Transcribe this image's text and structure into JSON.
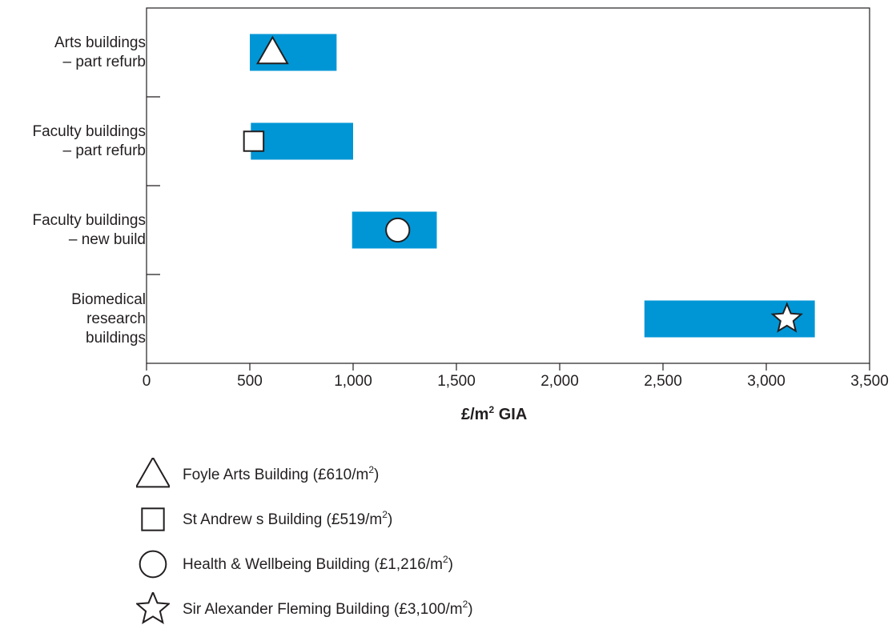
{
  "chart_data": {
    "type": "bar",
    "subtype": "floating-range-bar",
    "orientation": "horizontal",
    "categories": [
      [
        "Arts buildings",
        "– part refurb"
      ],
      [
        "Faculty buildings",
        "– part refurb"
      ],
      [
        "Faculty buildings",
        "– new build"
      ],
      [
        "Biomedical",
        "research",
        "buildings"
      ]
    ],
    "ranges": [
      {
        "low": 500,
        "high": 920
      },
      {
        "low": 505,
        "high": 1000
      },
      {
        "low": 995,
        "high": 1405
      },
      {
        "low": 2410,
        "high": 3235
      }
    ],
    "markers": [
      {
        "category_index": 0,
        "value": 610,
        "shape": "triangle"
      },
      {
        "category_index": 1,
        "value": 519,
        "shape": "square"
      },
      {
        "category_index": 2,
        "value": 1216,
        "shape": "circle"
      },
      {
        "category_index": 3,
        "value": 3100,
        "shape": "star"
      }
    ],
    "x_ticks": [
      0,
      500,
      1000,
      1500,
      2000,
      2500,
      3000,
      3500
    ],
    "x_tick_labels": [
      "0",
      "500",
      "1,000",
      "1,500",
      "2,000",
      "2,500",
      "3,000",
      "3,500"
    ],
    "xlim": [
      0,
      3500
    ],
    "xlabel_main": "£/m",
    "xlabel_sup": "2",
    "xlabel_tail": " GIA",
    "grid": false,
    "bar_color": "#0096d6",
    "legend_position": "bottom",
    "legend": [
      {
        "shape": "triangle",
        "text": "Foyle Arts Building (£610/m",
        "sup": "2",
        "close": ")"
      },
      {
        "shape": "square",
        "text": "St Andrew s Building (£519/m",
        "sup": "2",
        "close": ")"
      },
      {
        "shape": "circle",
        "text": "Health & Wellbeing Building (£1,216/m",
        "sup": "2",
        "close": ")"
      },
      {
        "shape": "star",
        "text": "Sir Alexander Fleming Building (£3,100/m",
        "sup": "2",
        "close": ")"
      }
    ]
  }
}
